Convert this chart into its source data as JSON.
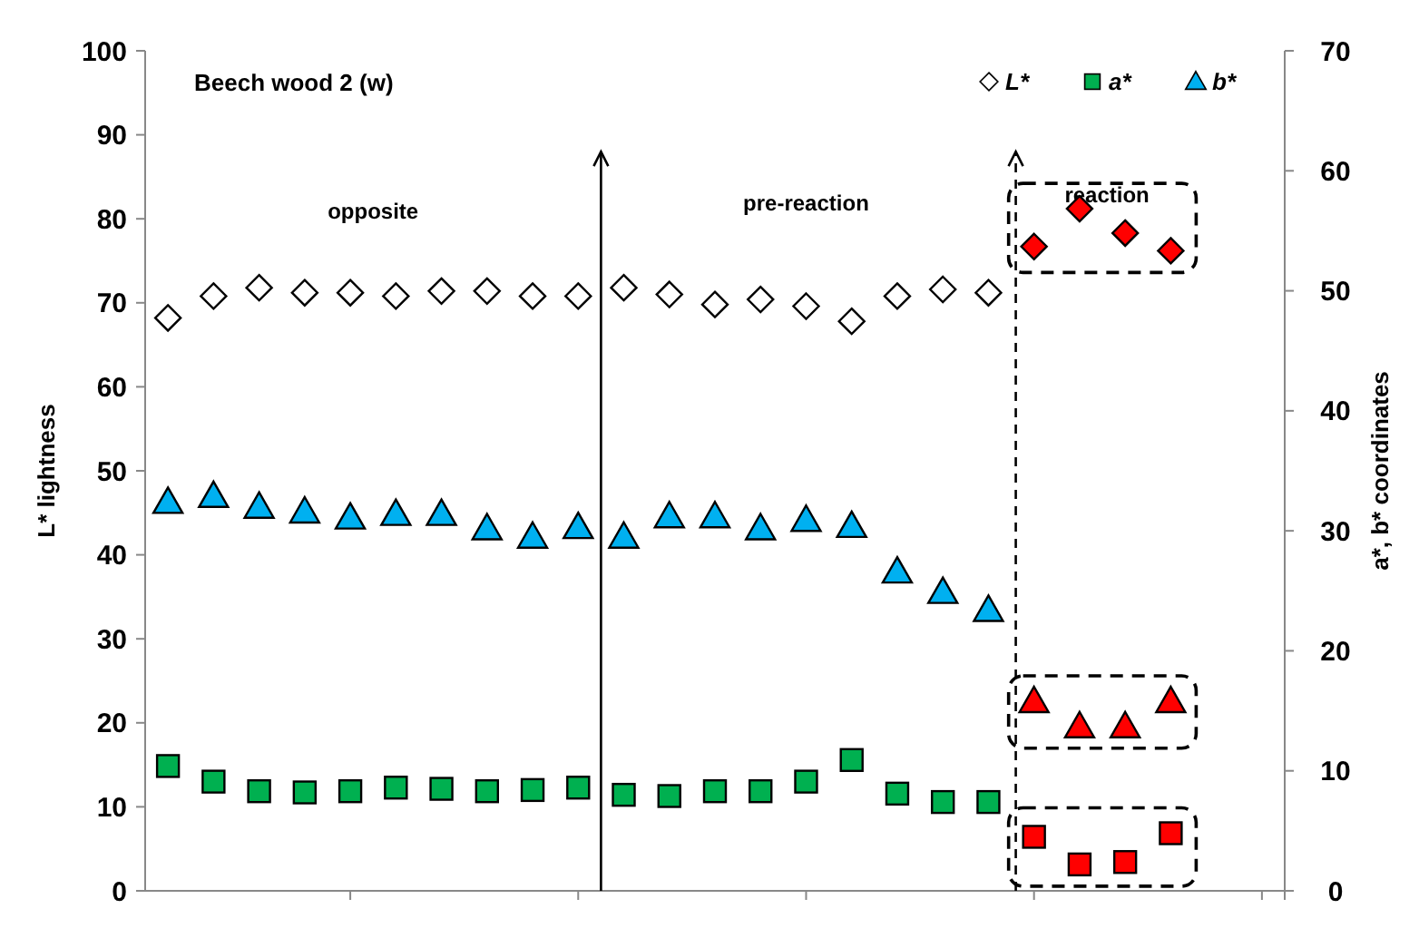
{
  "chart_data": {
    "type": "scatter",
    "title": "Beech wood 2 (w)",
    "ylabel": "L* lightness",
    "y2label": "a*, b* coordinates",
    "categories": [
      null,
      null,
      null,
      null,
      null,
      null,
      null,
      null,
      null,
      null,
      null,
      null,
      null,
      null,
      null,
      null,
      null,
      null,
      null,
      null,
      null,
      null,
      null,
      null,
      null
    ],
    "ylim": [
      0,
      100
    ],
    "yticks": [
      0,
      10,
      20,
      30,
      40,
      50,
      60,
      70,
      80,
      90,
      100
    ],
    "y2lim": [
      0,
      70
    ],
    "y2ticks": [
      0,
      10,
      20,
      30,
      40,
      50,
      60,
      70
    ],
    "tick_labels": "y",
    "grid": false,
    "legend": "top right",
    "series": [
      {
        "name": "L*",
        "color": "#ffffff",
        "marker": "diamond",
        "values": [
          68.2,
          70.8,
          71.8,
          71.2,
          71.2,
          70.8,
          71.4,
          71.4,
          70.8,
          70.8,
          71.8,
          71.0,
          69.8,
          70.4,
          69.6,
          67.8,
          70.8,
          71.6,
          71.2,
          null,
          null,
          null,
          null,
          null,
          null
        ]
      },
      {
        "name": "a*",
        "color": "#00b050",
        "marker": "square",
        "axis": "y2",
        "values": [
          10.4,
          9.1,
          8.3,
          8.2,
          8.3,
          8.6,
          8.5,
          8.3,
          8.4,
          8.6,
          8.0,
          7.9,
          8.3,
          8.3,
          9.1,
          10.9,
          8.1,
          7.4,
          7.4,
          null,
          null,
          null,
          null,
          null,
          null
        ]
      },
      {
        "name": "b*",
        "color": "#00b0f0",
        "marker": "triangle",
        "axis": "y2",
        "values": [
          32.4,
          32.9,
          32.0,
          31.6,
          31.1,
          31.4,
          31.4,
          30.2,
          29.5,
          30.3,
          29.5,
          31.2,
          31.2,
          30.2,
          30.9,
          30.4,
          26.6,
          24.9,
          23.4,
          null,
          null,
          null,
          null,
          null,
          null
        ]
      },
      {
        "color": "#ff0000",
        "marker": "diamond",
        "values": [
          null,
          null,
          null,
          null,
          null,
          null,
          null,
          null,
          null,
          null,
          null,
          null,
          null,
          null,
          null,
          null,
          null,
          null,
          null,
          76.7,
          81.2,
          78.3,
          76.2,
          null,
          null
        ]
      },
      {
        "color": "#ff0000",
        "marker": "square",
        "axis": "y2",
        "values": [
          null,
          null,
          null,
          null,
          null,
          null,
          null,
          null,
          null,
          null,
          null,
          null,
          null,
          null,
          null,
          null,
          null,
          null,
          null,
          4.5,
          2.2,
          2.4,
          4.8,
          null,
          null
        ]
      },
      {
        "color": "#ff0000",
        "marker": "triangle",
        "axis": "y2",
        "values": [
          null,
          null,
          null,
          null,
          null,
          null,
          null,
          null,
          null,
          null,
          null,
          null,
          null,
          null,
          null,
          null,
          null,
          null,
          null,
          15.8,
          13.7,
          13.7,
          15.8,
          null,
          null
        ]
      }
    ],
    "annotations": [
      "opposite",
      "pre-reaction",
      "reaction"
    ]
  }
}
